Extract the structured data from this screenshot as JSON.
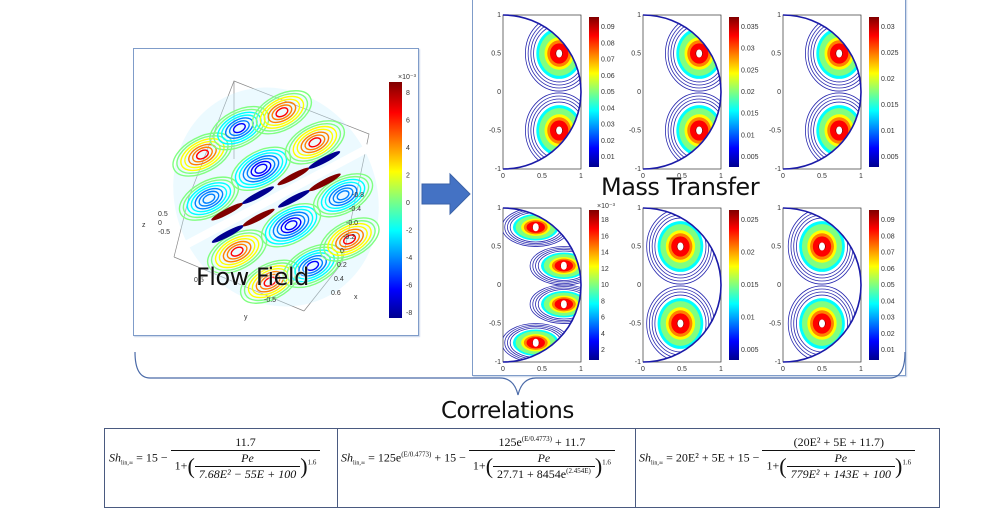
{
  "labels": {
    "flow_field": "Flow Field",
    "mass_transfer": "Mass Transfer",
    "correlations": "Correlations"
  },
  "colors": {
    "panel_border": "#7f9cc9",
    "arrow": "#4472c4",
    "contour_outline": "#1a1aa8",
    "colormap": [
      "#00008f",
      "#0000ff",
      "#0080ff",
      "#00ffff",
      "#80ff80",
      "#ffff00",
      "#ff8000",
      "#ff0000",
      "#800000"
    ]
  },
  "flow_field": {
    "axis_labels": {
      "x": "x",
      "y": "y",
      "z": "z"
    },
    "z_ticks": [
      "0.5",
      "0",
      "-0.5"
    ],
    "x_ticks": [
      "-0.8",
      "-0.4",
      "-0.0",
      "-0.2",
      "0",
      "0.2",
      "0.4",
      "0.6"
    ],
    "y_ticks": [
      "0.5",
      "-0.5"
    ],
    "colorbar_exponent": "×10⁻³",
    "colorbar_ticks": [
      "8",
      "6",
      "4",
      "2",
      "0",
      "-2",
      "-4",
      "-6",
      "-8"
    ]
  },
  "mass_transfer": {
    "plots": [
      {
        "id": "a",
        "yticks": [
          "1",
          "0.5",
          "0",
          "-0.5",
          "-1"
        ],
        "xticks": [
          "0",
          "0.5",
          "1"
        ],
        "colorbar_ticks": [
          "0.09",
          "0.08",
          "0.07",
          "0.06",
          "0.05",
          "0.04",
          "0.03",
          "0.02",
          "0.01"
        ],
        "cells": 2
      },
      {
        "id": "b",
        "yticks": [
          "1",
          "0.5",
          "0",
          "-0.5",
          "-1"
        ],
        "xticks": [
          "0",
          "0.5",
          "1"
        ],
        "colorbar_ticks": [
          "0.035",
          "0.03",
          "0.025",
          "0.02",
          "0.015",
          "0.01",
          "0.005"
        ],
        "cells": 2
      },
      {
        "id": "c",
        "yticks": [
          "1",
          "0.5",
          "0",
          "-0.5",
          "-1"
        ],
        "xticks": [
          "0",
          "0.5",
          "1"
        ],
        "colorbar_ticks": [
          "0.03",
          "0.025",
          "0.02",
          "0.015",
          "0.01",
          "0.005"
        ],
        "cells": 2
      },
      {
        "id": "d",
        "yticks": [
          "1",
          "0.5",
          "0",
          "-0.5",
          "-1"
        ],
        "xticks": [
          "0",
          "0.5",
          "1"
        ],
        "colorbar_exponent": "×10⁻³",
        "colorbar_ticks": [
          "18",
          "16",
          "14",
          "12",
          "10",
          "8",
          "6",
          "4",
          "2"
        ],
        "cells": 4
      },
      {
        "id": "e",
        "yticks": [
          "1",
          "0.5",
          "0",
          "-0.5",
          "-1"
        ],
        "xticks": [
          "0",
          "0.5",
          "1"
        ],
        "colorbar_ticks": [
          "0.025",
          "0.02",
          "0.015",
          "0.01",
          "0.005"
        ],
        "cells": 2
      },
      {
        "id": "f",
        "yticks": [
          "1",
          "0.5",
          "0",
          "-0.5",
          "-1"
        ],
        "xticks": [
          "0",
          "0.5",
          "1"
        ],
        "colorbar_ticks": [
          "0.09",
          "0.08",
          "0.07",
          "0.06",
          "0.05",
          "0.04",
          "0.03",
          "0.02",
          "0.01"
        ],
        "cells": 2
      }
    ]
  },
  "correlations": [
    {
      "lhs": "Sh",
      "lhs_sub": "lin,∞",
      "text": "Sh = 15 − 11.7 / (1 + (Pe / (7.68E² − 55E + 100))^1.6)",
      "lead": "= 15 −",
      "numerator": "11.7",
      "inner_num": "Pe",
      "inner_den": "7.68E² − 55E + 100",
      "exponent": "1.6"
    },
    {
      "lhs": "Sh",
      "lhs_sub": "lin,∞",
      "text": "Sh = 125e^(E/0.4773) + 15 − (125e^(E/0.4773) + 11.7) / (1 + (Pe / (27.71 + 8454e^(2.454E)))^1.6)",
      "lead": "= 125e",
      "lead_exp": "(E/0.4773)",
      "lead2": "+ 15 −",
      "numerator": "125e",
      "numerator_exp": "(E/0.4773)",
      "numerator_tail": "+ 11.7",
      "inner_num": "Pe",
      "inner_den": "27.71 + 8454e",
      "inner_den_exp": "(2.454E)",
      "exponent": "1.6"
    },
    {
      "lhs": "Sh",
      "lhs_sub": "lin,∞",
      "text": "Sh = 20E² + 5E + 15 − (20E² + 5E + 11.7) / (1 + (Pe / (779E² + 143E + 100))^1.6)",
      "lead": "= 20E² + 5E + 15 −",
      "numerator": "(20E² + 5E + 11.7)",
      "inner_num": "Pe",
      "inner_den": "779E² + 143E + 100",
      "exponent": "1.6"
    }
  ]
}
